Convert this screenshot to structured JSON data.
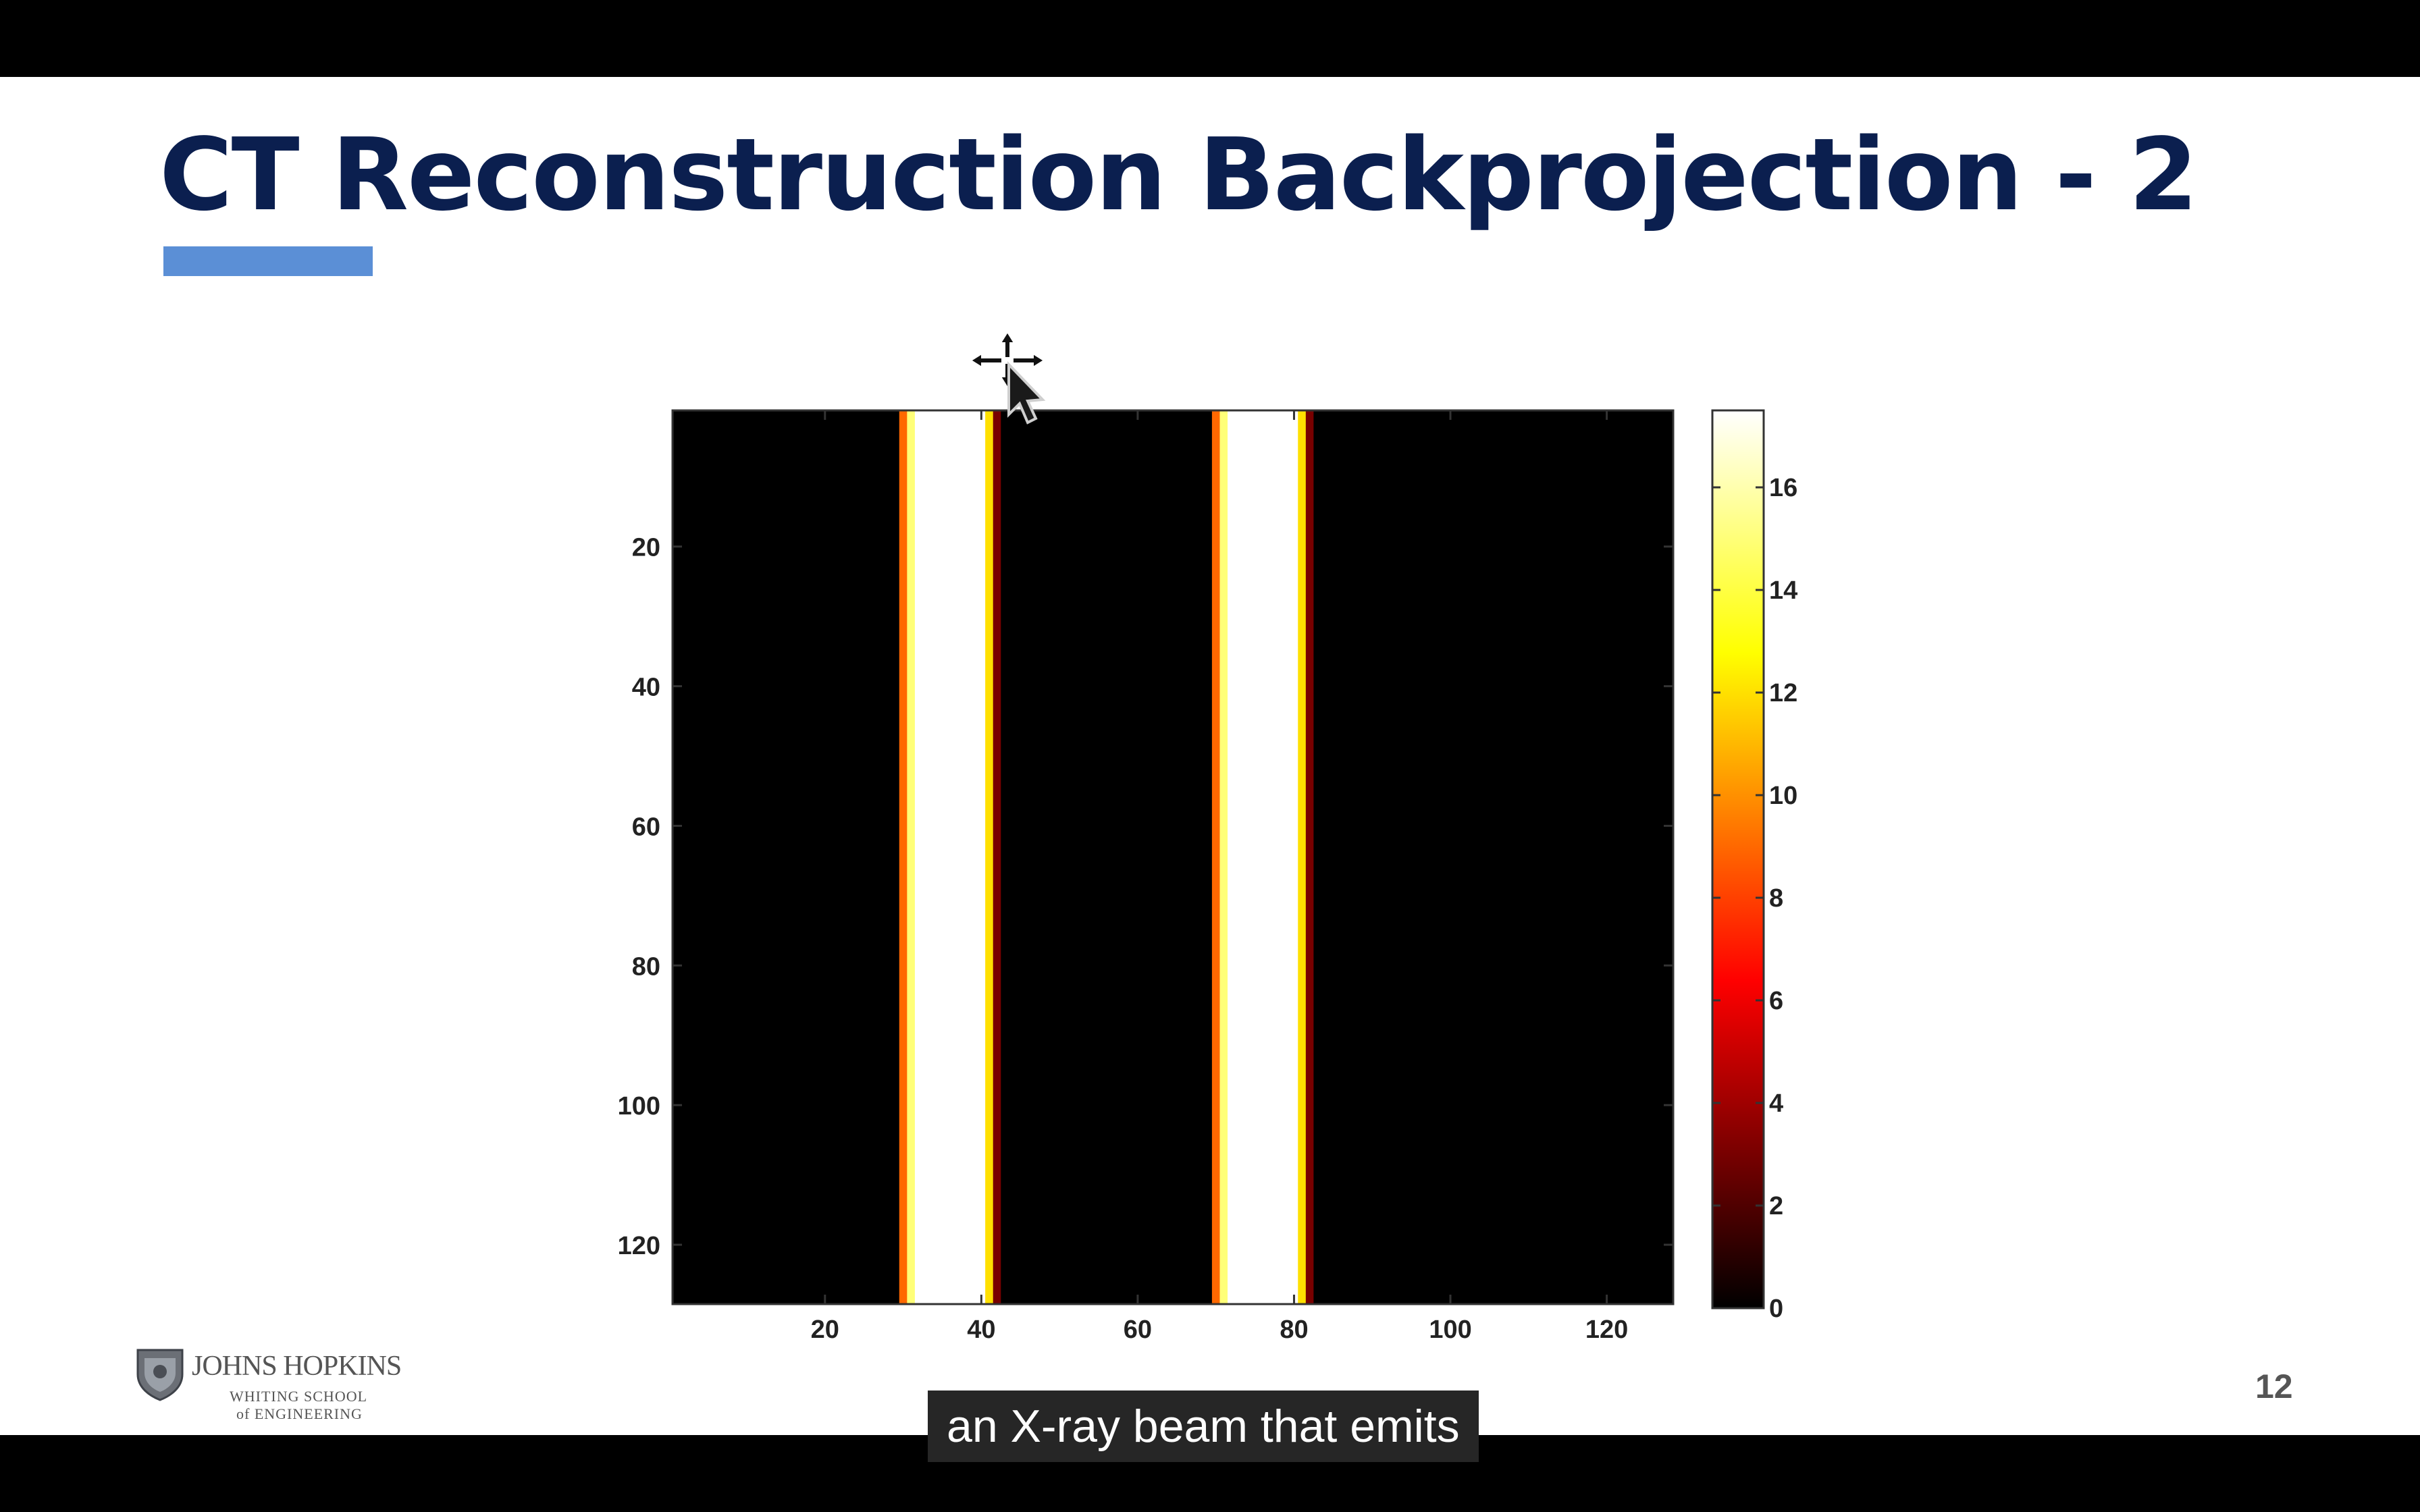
{
  "slide": {
    "title": "CT Reconstruction Backprojection - 2",
    "page_number": "12",
    "accent_color": "#5b8fd6",
    "title_color": "#0b1f4f"
  },
  "logo": {
    "line1": "JOHNS HOPKINS",
    "line2": "WHITING SCHOOL",
    "line3": "of ENGINEERING",
    "icon": "shield-icon"
  },
  "caption": {
    "text": "an X-ray beam that emits"
  },
  "cursor": {
    "icon": "move-cursor-icon"
  },
  "chart_data": {
    "type": "heatmap",
    "title": "",
    "xlabel": "",
    "ylabel": "",
    "xlim": [
      0.5,
      128.5
    ],
    "ylim": [
      0.5,
      128.5
    ],
    "x_ticks": [
      20,
      40,
      60,
      80,
      100,
      120
    ],
    "y_ticks": [
      20,
      40,
      60,
      80,
      100,
      120
    ],
    "colormap": "hot",
    "colorbar": {
      "range": [
        0,
        17.5
      ],
      "ticks": [
        0,
        2,
        4,
        6,
        8,
        10,
        12,
        14,
        16
      ]
    },
    "x_profile": [
      {
        "x": [
          1,
          29
        ],
        "value": 0
      },
      {
        "x": [
          30,
          30
        ],
        "value": 9
      },
      {
        "x": [
          31,
          31
        ],
        "value": 15
      },
      {
        "x": [
          32,
          40
        ],
        "value": 17.5
      },
      {
        "x": [
          41,
          41
        ],
        "value": 12
      },
      {
        "x": [
          42,
          42
        ],
        "value": 3
      },
      {
        "x": [
          43,
          69
        ],
        "value": 0
      },
      {
        "x": [
          70,
          70
        ],
        "value": 9
      },
      {
        "x": [
          71,
          71
        ],
        "value": 15
      },
      {
        "x": [
          72,
          80
        ],
        "value": 17.5
      },
      {
        "x": [
          81,
          81
        ],
        "value": 12
      },
      {
        "x": [
          82,
          82
        ],
        "value": 3
      },
      {
        "x": [
          83,
          128
        ],
        "value": 0
      }
    ]
  }
}
